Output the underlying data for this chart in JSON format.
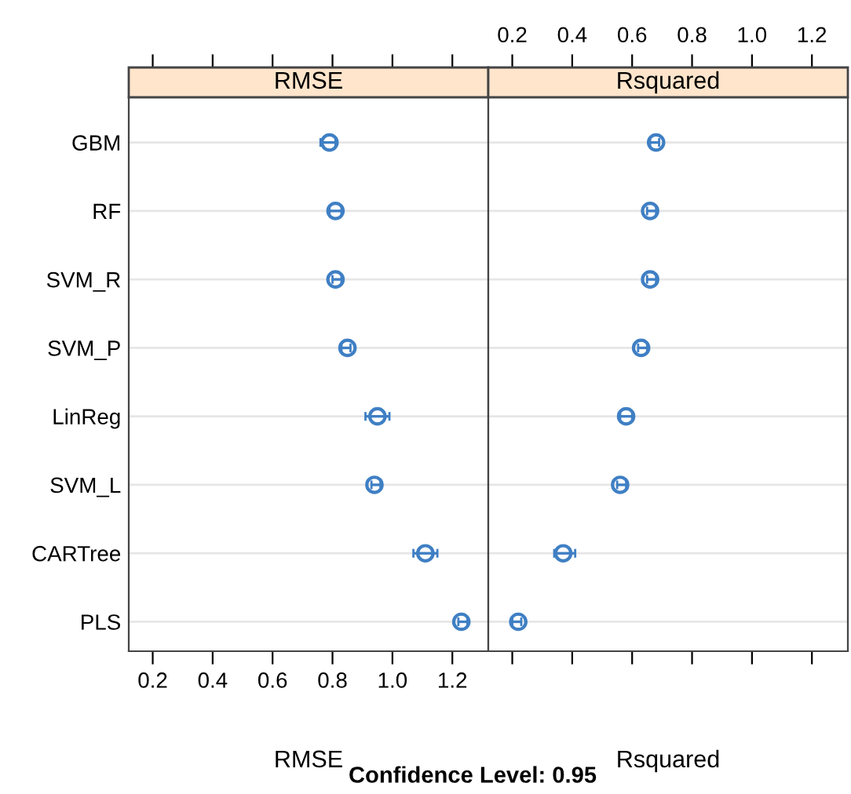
{
  "chart_data": [
    {
      "type": "scatter",
      "orientation": "horizontal",
      "title": "RMSE",
      "xlabel": "RMSE",
      "categories": [
        "GBM",
        "RF",
        "SVM_R",
        "SVM_P",
        "LinReg",
        "SVM_L",
        "CARTree",
        "PLS"
      ],
      "values": [
        0.79,
        0.81,
        0.81,
        0.85,
        0.95,
        0.94,
        1.11,
        1.23
      ],
      "errors": [
        [
          0.76,
          0.81
        ],
        [
          0.79,
          0.83
        ],
        [
          0.8,
          0.83
        ],
        [
          0.83,
          0.86
        ],
        [
          0.91,
          0.99
        ],
        [
          0.93,
          0.96
        ],
        [
          1.07,
          1.15
        ],
        [
          1.22,
          1.25
        ]
      ],
      "color": "#3f7fc4",
      "marker": "circle",
      "grid": "y",
      "xlim": [
        0.12,
        1.32
      ],
      "xticks": [
        0.2,
        0.4,
        0.6,
        0.8,
        {
          "value": 1.0,
          "label": "1.0"
        },
        1.2
      ],
      "annotations": [
        "Confidence Level: 0.95"
      ]
    },
    {
      "type": "scatter",
      "orientation": "horizontal",
      "title": "Rsquared",
      "xlabel": "Rsquared",
      "categories": [
        null,
        null,
        null,
        null,
        null,
        null,
        null,
        null
      ],
      "values": [
        0.68,
        0.66,
        0.66,
        0.63,
        0.58,
        0.56,
        0.37,
        0.22
      ],
      "errors": [
        [
          0.66,
          0.69
        ],
        [
          0.65,
          0.68
        ],
        [
          0.65,
          0.68
        ],
        [
          0.62,
          0.65
        ],
        [
          0.56,
          0.6
        ],
        [
          0.55,
          0.58
        ],
        [
          0.34,
          0.41
        ],
        [
          0.2,
          0.23
        ]
      ],
      "color": "#3f7fc4",
      "marker": "circle",
      "grid": "y",
      "xlim": [
        0.12,
        1.32
      ],
      "xticks": [
        0.2,
        0.4,
        0.6,
        0.8,
        {
          "value": 1.0,
          "label": "1.0"
        },
        1.2
      ],
      "tick_labels": "x"
    }
  ]
}
